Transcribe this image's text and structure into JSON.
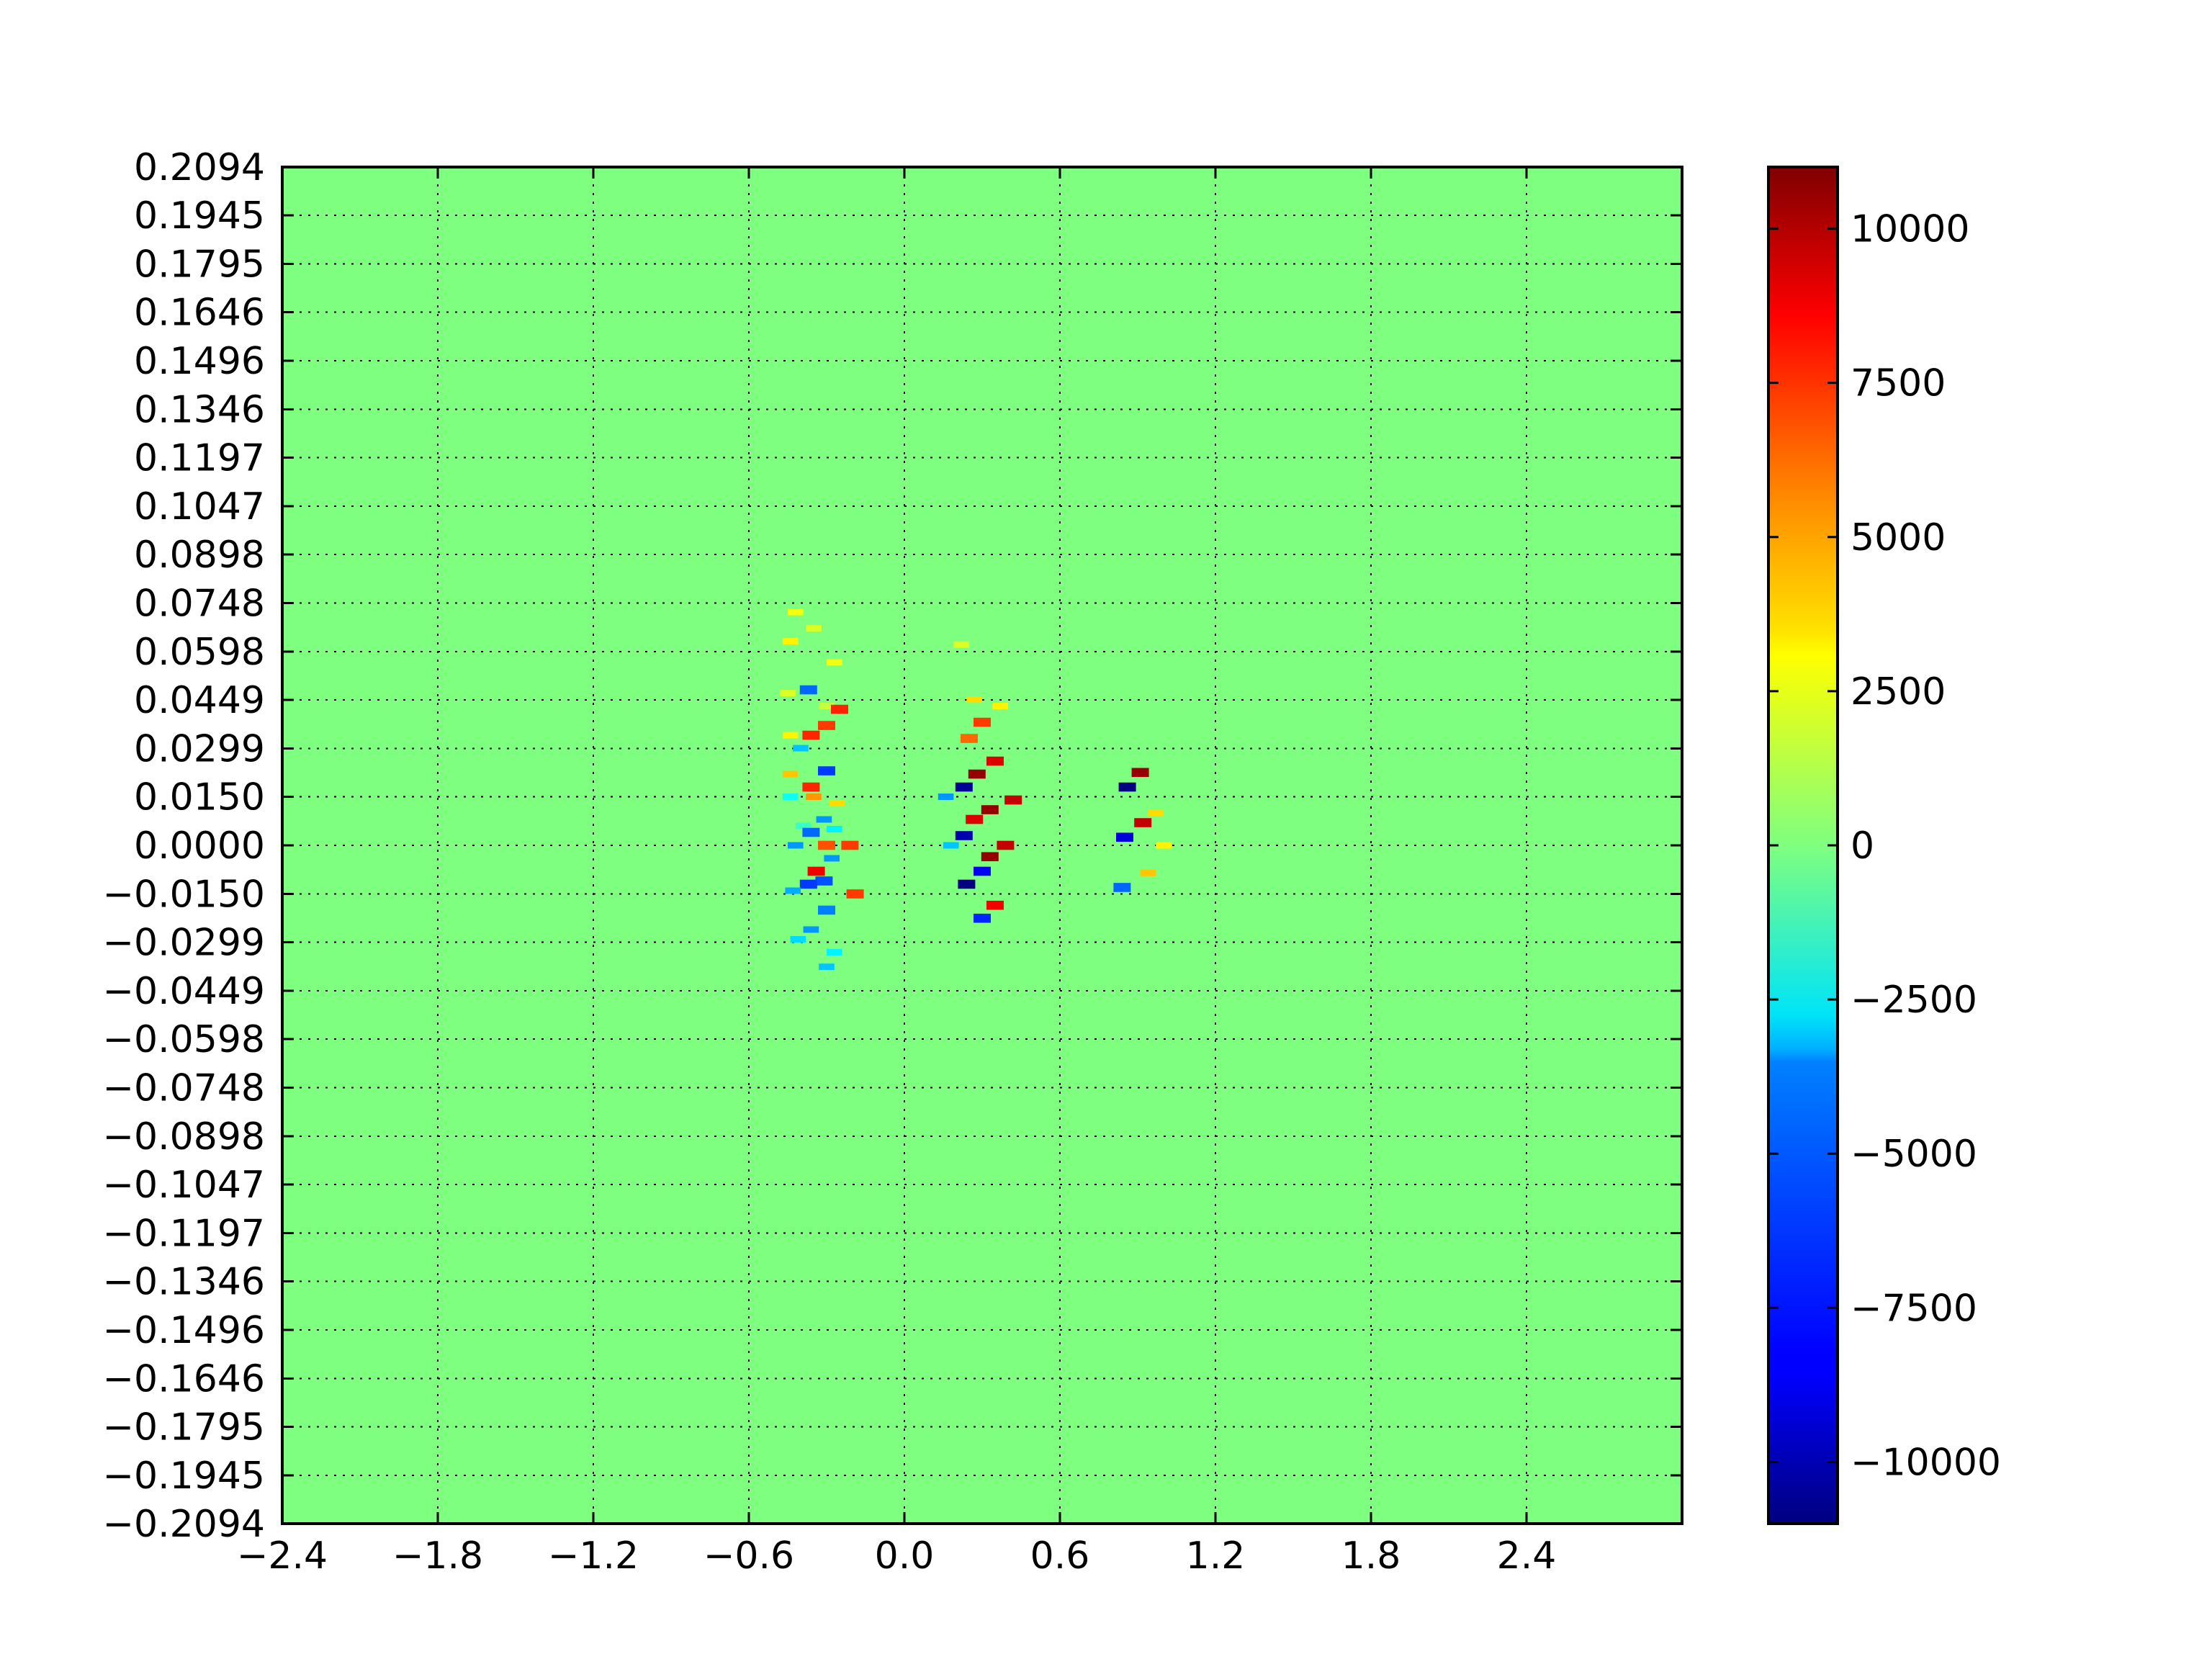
{
  "chart_data": {
    "type": "heatmap",
    "title": "",
    "xlabel": "",
    "ylabel": "",
    "xlim": [
      -2.4,
      3.0
    ],
    "ylim": [
      -0.2094,
      0.2094
    ],
    "grid": true,
    "background_value": 0,
    "x_tick_labels": [
      "−2.4",
      "−1.8",
      "−1.2",
      "−0.6",
      "0.0",
      "0.6",
      "1.2",
      "1.8",
      "2.4"
    ],
    "x_tick_values": [
      -2.4,
      -1.8,
      -1.2,
      -0.6,
      0.0,
      0.6,
      1.2,
      1.8,
      2.4
    ],
    "y_tick_labels": [
      "0.2094",
      "0.1945",
      "0.1795",
      "0.1646",
      "0.1496",
      "0.1346",
      "0.1197",
      "0.1047",
      "0.0898",
      "0.0748",
      "0.0598",
      "0.0449",
      "0.0299",
      "0.0150",
      "0.0000",
      "−0.0150",
      "−0.0299",
      "−0.0449",
      "−0.0598",
      "−0.0748",
      "−0.0898",
      "−0.1047",
      "−0.1197",
      "−0.1346",
      "−0.1496",
      "−0.1646",
      "−0.1795",
      "−0.1945",
      "−0.2094"
    ],
    "y_tick_values": [
      0.2094,
      0.1945,
      0.1795,
      0.1646,
      0.1496,
      0.1346,
      0.1197,
      0.1047,
      0.0898,
      0.0748,
      0.0598,
      0.0449,
      0.0299,
      0.015,
      0.0,
      -0.015,
      -0.0299,
      -0.0449,
      -0.0598,
      -0.0748,
      -0.0898,
      -0.1047,
      -0.1197,
      -0.1346,
      -0.1496,
      -0.1646,
      -0.1795,
      -0.1945,
      -0.2094
    ],
    "colorbar": {
      "colormap": "jet",
      "vmin": -11000,
      "vmax": 11000,
      "tick_labels": [
        "10000",
        "7500",
        "5000",
        "2500",
        "0",
        "−2500",
        "−5000",
        "−7500",
        "−10000"
      ],
      "tick_values": [
        10000,
        7500,
        5000,
        2500,
        0,
        -2500,
        -5000,
        -7500,
        -10000
      ]
    },
    "cells": [
      {
        "x": -0.42,
        "y": 0.072,
        "v": 2500
      },
      {
        "x": -0.44,
        "y": 0.063,
        "v": 3000
      },
      {
        "x": -0.35,
        "y": 0.067,
        "v": 2000
      },
      {
        "x": -0.27,
        "y": 0.0565,
        "v": 2500
      },
      {
        "x": -0.45,
        "y": 0.047,
        "v": 2000
      },
      {
        "x": -0.37,
        "y": 0.048,
        "v": -6000
      },
      {
        "x": -0.3,
        "y": 0.043,
        "v": 1500
      },
      {
        "x": -0.25,
        "y": 0.042,
        "v": 7500
      },
      {
        "x": -0.3,
        "y": 0.037,
        "v": 7000
      },
      {
        "x": -0.44,
        "y": 0.034,
        "v": 3000
      },
      {
        "x": -0.36,
        "y": 0.034,
        "v": 7500
      },
      {
        "x": -0.4,
        "y": 0.03,
        "v": -4000
      },
      {
        "x": -0.3,
        "y": 0.023,
        "v": -7000
      },
      {
        "x": -0.44,
        "y": 0.022,
        "v": 4000
      },
      {
        "x": -0.36,
        "y": 0.018,
        "v": 7500
      },
      {
        "x": -0.44,
        "y": 0.015,
        "v": -2500
      },
      {
        "x": -0.35,
        "y": 0.015,
        "v": 5000
      },
      {
        "x": -0.26,
        "y": 0.013,
        "v": 3500
      },
      {
        "x": -0.31,
        "y": 0.008,
        "v": -5000
      },
      {
        "x": -0.39,
        "y": 0.006,
        "v": -1500
      },
      {
        "x": -0.36,
        "y": 0.004,
        "v": -6000
      },
      {
        "x": -0.27,
        "y": 0.005,
        "v": -3000
      },
      {
        "x": -0.42,
        "y": 0.0,
        "v": -5000
      },
      {
        "x": -0.3,
        "y": 0.0,
        "v": 6500
      },
      {
        "x": -0.21,
        "y": 0.0,
        "v": 7000
      },
      {
        "x": -0.28,
        "y": -0.004,
        "v": -5000
      },
      {
        "x": -0.34,
        "y": -0.008,
        "v": 8500
      },
      {
        "x": -0.31,
        "y": -0.011,
        "v": -6500
      },
      {
        "x": -0.37,
        "y": -0.012,
        "v": -7000
      },
      {
        "x": -0.43,
        "y": -0.014,
        "v": -4500
      },
      {
        "x": -0.19,
        "y": -0.015,
        "v": 7000
      },
      {
        "x": -0.3,
        "y": -0.02,
        "v": -5500
      },
      {
        "x": -0.36,
        "y": -0.026,
        "v": -5000
      },
      {
        "x": -0.41,
        "y": -0.029,
        "v": -3500
      },
      {
        "x": -0.27,
        "y": -0.033,
        "v": -3000
      },
      {
        "x": -0.3,
        "y": -0.0375,
        "v": -4000
      },
      {
        "x": 0.22,
        "y": 0.062,
        "v": 2000
      },
      {
        "x": 0.27,
        "y": 0.045,
        "v": 3500
      },
      {
        "x": 0.37,
        "y": 0.043,
        "v": 3000
      },
      {
        "x": 0.3,
        "y": 0.038,
        "v": 7000
      },
      {
        "x": 0.25,
        "y": 0.033,
        "v": 6000
      },
      {
        "x": 0.35,
        "y": 0.026,
        "v": 9000
      },
      {
        "x": 0.28,
        "y": 0.022,
        "v": 10500
      },
      {
        "x": 0.23,
        "y": 0.018,
        "v": -10500
      },
      {
        "x": 0.16,
        "y": 0.015,
        "v": -5000
      },
      {
        "x": 0.33,
        "y": 0.011,
        "v": 10500
      },
      {
        "x": 0.27,
        "y": 0.008,
        "v": 9000
      },
      {
        "x": 0.42,
        "y": 0.014,
        "v": 9500
      },
      {
        "x": 0.23,
        "y": 0.003,
        "v": -10000
      },
      {
        "x": 0.18,
        "y": 0.0,
        "v": -4000
      },
      {
        "x": 0.39,
        "y": 0.0,
        "v": 9500
      },
      {
        "x": 0.33,
        "y": -0.0035,
        "v": 10500
      },
      {
        "x": 0.3,
        "y": -0.008,
        "v": -8500
      },
      {
        "x": 0.24,
        "y": -0.012,
        "v": -11000
      },
      {
        "x": 0.35,
        "y": -0.0185,
        "v": 8500
      },
      {
        "x": 0.3,
        "y": -0.0225,
        "v": -7500
      },
      {
        "x": 0.91,
        "y": 0.0225,
        "v": 10500
      },
      {
        "x": 0.86,
        "y": 0.018,
        "v": -11000
      },
      {
        "x": 0.97,
        "y": 0.01,
        "v": 3500
      },
      {
        "x": 0.92,
        "y": 0.007,
        "v": 9500
      },
      {
        "x": 0.85,
        "y": 0.0025,
        "v": -9000
      },
      {
        "x": 1.0,
        "y": 0.0,
        "v": 3000
      },
      {
        "x": 0.94,
        "y": -0.0085,
        "v": 4000
      },
      {
        "x": 0.84,
        "y": -0.013,
        "v": -6000
      }
    ]
  }
}
